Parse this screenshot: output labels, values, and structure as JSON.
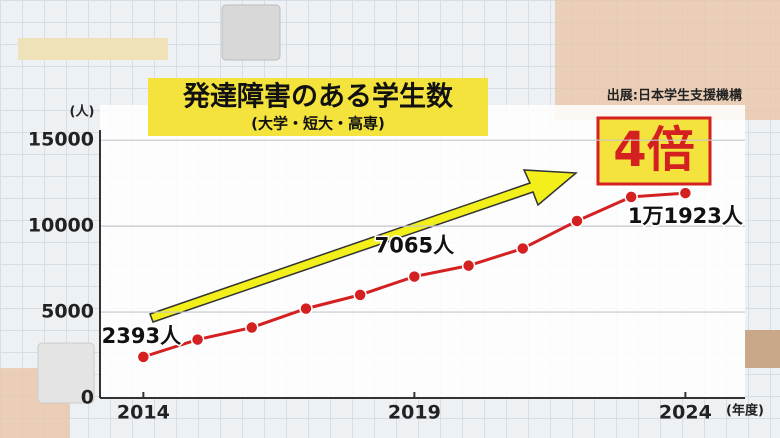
{
  "chart_data": {
    "type": "line",
    "title": "発達障害のある学生数",
    "subtitle": "(大学・短大・高専)",
    "source": "出展:日本学生支援機構",
    "y_label": "(人)",
    "x_label": "(年度)",
    "annotation": "4倍",
    "x": [
      2014,
      2015,
      2016,
      2017,
      2018,
      2019,
      2020,
      2021,
      2022,
      2023,
      2024
    ],
    "series": [
      {
        "color": "#d42020",
        "values": [
          2393,
          3400,
          4100,
          5200,
          6000,
          7065,
          7700,
          8700,
          10300,
          11700,
          11923
        ],
        "value_labels": [
          "2393人",
          null,
          null,
          null,
          null,
          "7065人",
          null,
          null,
          null,
          null,
          "1万1923人"
        ]
      }
    ],
    "xlim": [
      2013.2,
      2025.1
    ],
    "xticks": [
      2014,
      2019,
      2024
    ],
    "ylim": [
      0,
      16000
    ],
    "yticks": [
      0,
      5000,
      10000,
      15000
    ],
    "grid": true
  }
}
